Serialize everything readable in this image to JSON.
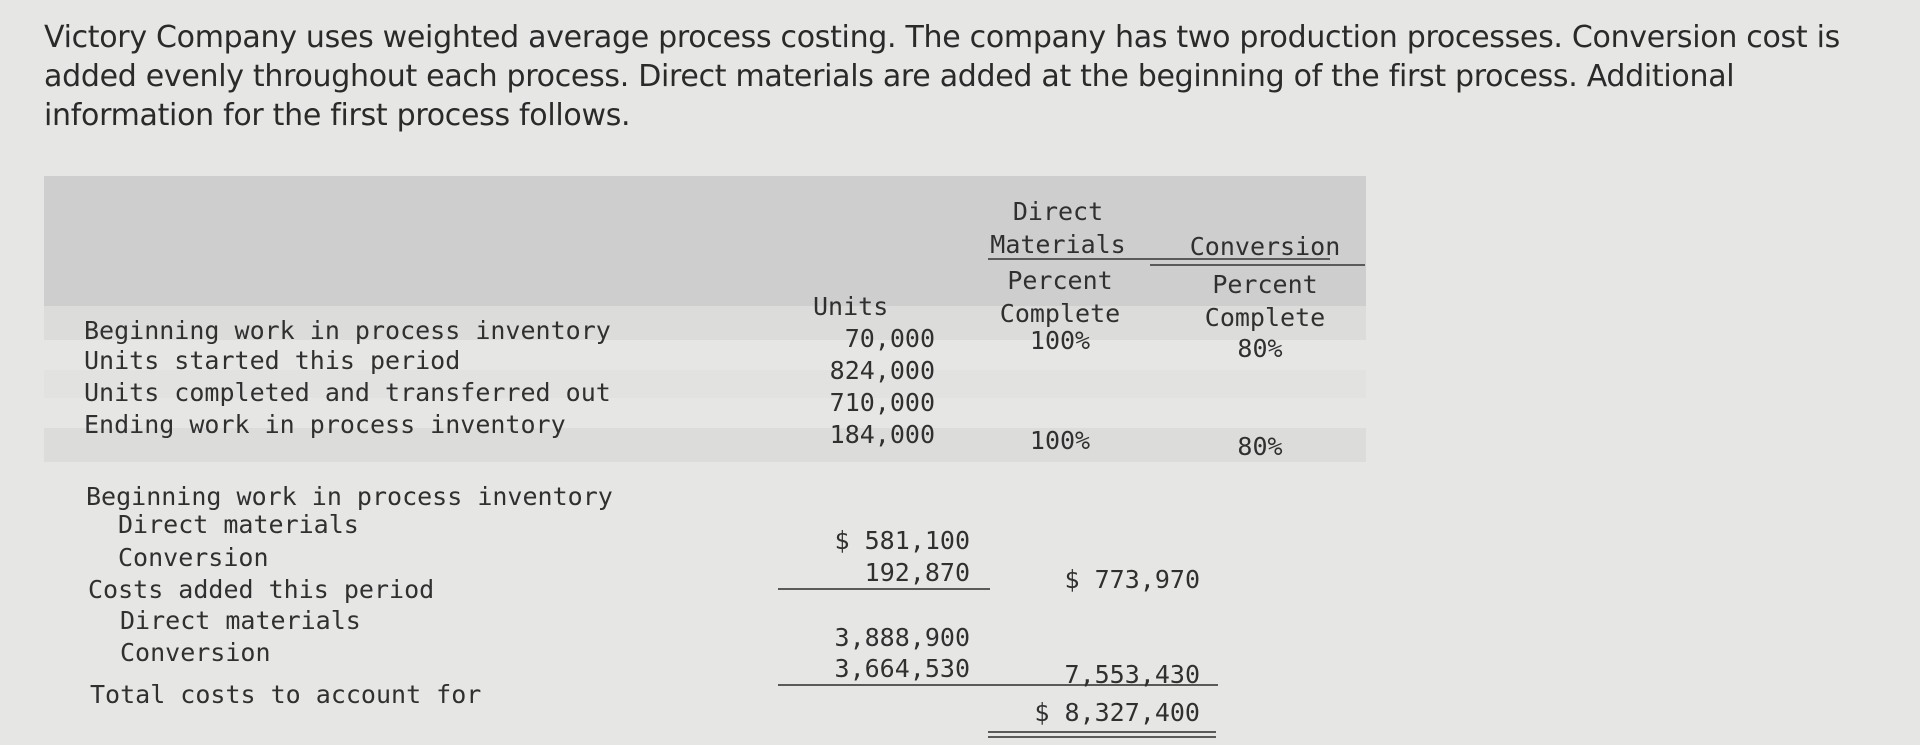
{
  "intro": "Victory Company uses weighted average process costing. The company has two production processes. Conversion cost is added evenly throughout each process. Direct materials are added at the beginning of the first process. Additional information for the first process follows.",
  "units_table": {
    "headers": {
      "units": "Units",
      "dm_group": "Direct Materials",
      "dm_sub": "Percent Complete",
      "conv_group": "Conversion",
      "conv_sub": "Percent Complete"
    },
    "rows": [
      {
        "label": "Beginning work in process inventory",
        "units": "70,000",
        "dm_pct": "100%",
        "conv_pct": "80%"
      },
      {
        "label": "Units started this period",
        "units": "824,000",
        "dm_pct": "",
        "conv_pct": ""
      },
      {
        "label": "Units completed and transferred out",
        "units": "710,000",
        "dm_pct": "",
        "conv_pct": ""
      },
      {
        "label": "Ending work in process inventory",
        "units": "184,000",
        "dm_pct": "100%",
        "conv_pct": "80%"
      }
    ]
  },
  "cost_table": {
    "beginning_wip_label": "Beginning work in process inventory",
    "beginning_dm_label": "Direct materials",
    "beginning_dm_value": "$ 581,100",
    "beginning_conv_label": "Conversion",
    "beginning_conv_value": "192,870",
    "beginning_total": "$ 773,970",
    "added_label": "Costs added this period",
    "added_dm_label": "Direct materials",
    "added_dm_value": "3,888,900",
    "added_conv_label": "Conversion",
    "added_conv_value": "3,664,530",
    "added_total": "7,553,430",
    "total_label": "Total costs to account for",
    "total_value": "$ 8,327,400"
  }
}
